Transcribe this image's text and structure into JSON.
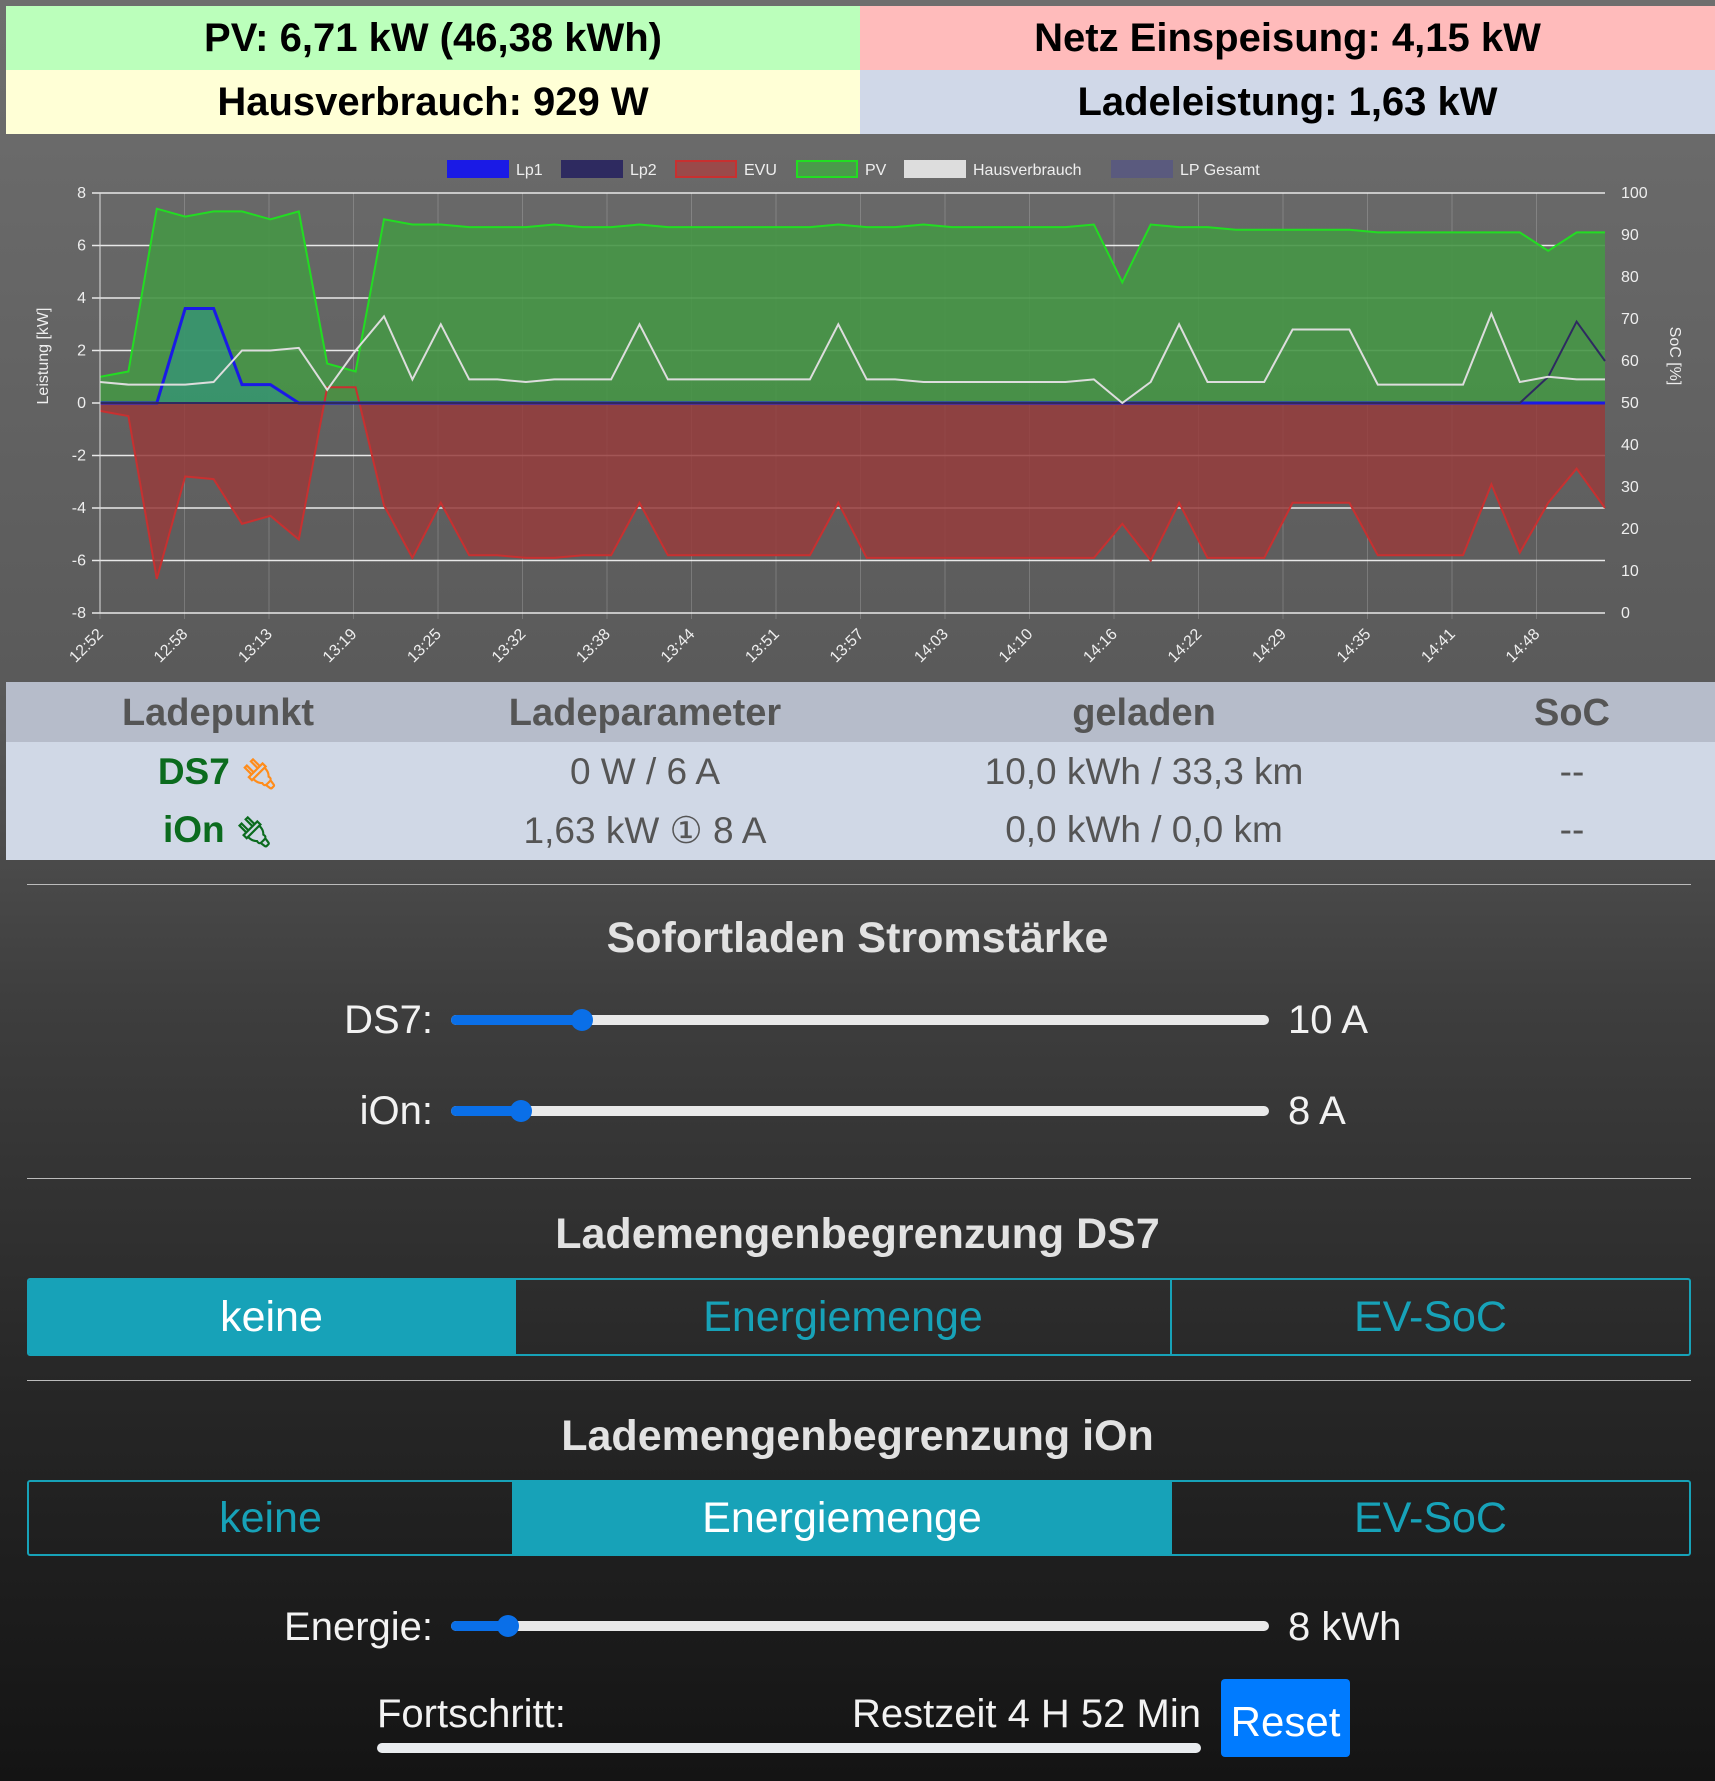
{
  "summary": {
    "pv": "PV: 6,71 kW (46,38 kWh)",
    "grid": "Netz Einspeisung: 4,15 kW",
    "house": "Hausverbrauch: 929 W",
    "charging": "Ladeleistung: 1,63 kW",
    "colors": {
      "pv": "#bbffbb",
      "grid": "#ffbbbb",
      "house": "#ffffd6",
      "charging": "#d0d8e8"
    }
  },
  "chart_data": {
    "type": "line",
    "ylabel": "Leistung [kW]",
    "y2label": "SoC [%]",
    "ylim": [
      -8,
      8
    ],
    "y2lim": [
      0,
      100
    ],
    "yticks": [
      "8",
      "6",
      "4",
      "2",
      "0",
      "-2",
      "-4",
      "-6",
      "-8"
    ],
    "y2ticks": [
      "100",
      "90",
      "80",
      "70",
      "60",
      "50",
      "40",
      "30",
      "20",
      "10",
      "0"
    ],
    "x_labels": [
      "12:52",
      "12:58",
      "13:13",
      "13:19",
      "13:25",
      "13:32",
      "13:38",
      "13:44",
      "13:51",
      "13:57",
      "14:03",
      "14:10",
      "14:16",
      "14:22",
      "14:29",
      "14:35",
      "14:41",
      "14:48"
    ],
    "grid": true,
    "legend": "top",
    "series": [
      {
        "name": "Lp1",
        "color": "#1a1ae6",
        "fill": "rgba(40,150,150,0.45)",
        "values": [
          0,
          0,
          0,
          3.6,
          3.6,
          0.7,
          0.7,
          0,
          0,
          0,
          0,
          0,
          0,
          0,
          0,
          0,
          0,
          0,
          0,
          0,
          0,
          0,
          0,
          0,
          0,
          0,
          0,
          0,
          0,
          0,
          0,
          0,
          0,
          0,
          0,
          0,
          0,
          0,
          0,
          0,
          0,
          0,
          0,
          0,
          0,
          0,
          0,
          0,
          0,
          0,
          0,
          0,
          0,
          0
        ]
      },
      {
        "name": "Lp2",
        "color": "#2e2a60",
        "fill": "none",
        "values": [
          0,
          0,
          0,
          0,
          0,
          0,
          0,
          0,
          0,
          0,
          0,
          0,
          0,
          0,
          0,
          0,
          0,
          0,
          0,
          0,
          0,
          0,
          0,
          0,
          0,
          0,
          0,
          0,
          0,
          0,
          0,
          0,
          0,
          0,
          0,
          0,
          0,
          0,
          0,
          0,
          0,
          0,
          0,
          0,
          0,
          0,
          0,
          0,
          0,
          0,
          0,
          1.0,
          3.1,
          1.6
        ]
      },
      {
        "name": "EVU",
        "color": "#c83030",
        "fill": "rgba(150,60,60,0.85)",
        "values": [
          -0.3,
          -0.5,
          -6.7,
          -2.8,
          -2.9,
          -4.6,
          -4.3,
          -5.2,
          0.6,
          0.6,
          -3.9,
          -5.9,
          -3.8,
          -5.8,
          -5.8,
          -5.9,
          -5.9,
          -5.8,
          -5.8,
          -3.8,
          -5.8,
          -5.8,
          -5.8,
          -5.8,
          -5.8,
          -5.8,
          -3.8,
          -5.9,
          -5.9,
          -5.9,
          -5.9,
          -5.9,
          -5.9,
          -5.9,
          -5.9,
          -5.9,
          -4.6,
          -6.0,
          -3.8,
          -5.9,
          -5.9,
          -5.9,
          -3.8,
          -3.8,
          -3.8,
          -5.8,
          -5.8,
          -5.8,
          -5.8,
          -3.1,
          -5.7,
          -3.8,
          -2.5,
          -4.0
        ]
      },
      {
        "name": "PV",
        "color": "#22dd22",
        "fill": "rgba(70,150,70,0.9)",
        "values": [
          1.0,
          1.2,
          7.4,
          7.1,
          7.3,
          7.3,
          7.0,
          7.3,
          1.5,
          1.2,
          7.0,
          6.8,
          6.8,
          6.7,
          6.7,
          6.7,
          6.8,
          6.7,
          6.7,
          6.8,
          6.7,
          6.7,
          6.7,
          6.7,
          6.7,
          6.7,
          6.8,
          6.7,
          6.7,
          6.8,
          6.7,
          6.7,
          6.7,
          6.7,
          6.7,
          6.8,
          4.6,
          6.8,
          6.7,
          6.7,
          6.6,
          6.6,
          6.6,
          6.6,
          6.6,
          6.5,
          6.5,
          6.5,
          6.5,
          6.5,
          6.5,
          5.8,
          6.5,
          6.5
        ]
      },
      {
        "name": "Hausverbrauch",
        "color": "#dddddd",
        "fill": "none",
        "values": [
          0.8,
          0.7,
          0.7,
          0.7,
          0.8,
          2.0,
          2.0,
          2.1,
          0.5,
          2.0,
          3.3,
          0.9,
          3.0,
          0.9,
          0.9,
          0.8,
          0.9,
          0.9,
          0.9,
          3.0,
          0.9,
          0.9,
          0.9,
          0.9,
          0.9,
          0.9,
          3.0,
          0.9,
          0.9,
          0.8,
          0.8,
          0.8,
          0.8,
          0.8,
          0.8,
          0.9,
          0.0,
          0.8,
          3.0,
          0.8,
          0.8,
          0.8,
          2.8,
          2.8,
          2.8,
          0.7,
          0.7,
          0.7,
          0.7,
          3.4,
          0.8,
          1.0,
          0.9,
          0.9
        ]
      },
      {
        "name": "LP Gesamt",
        "color": "#5a5a7e",
        "fill": "none",
        "values": []
      }
    ]
  },
  "table": {
    "headers": [
      "Ladepunkt",
      "Ladeparameter",
      "geladen",
      "SoC"
    ],
    "rows": [
      {
        "name": "DS7",
        "plug_icon": "plug-icon",
        "plug_color": "#ff8c1a",
        "params": "0 W / 6 A",
        "charged": "10,0 kWh / 33,3 km",
        "soc": "--"
      },
      {
        "name": "iOn",
        "plug_icon": "plug-icon",
        "plug_color": "#0b6b1e",
        "params": "1,63 kW ① 8 A",
        "charged": "0,0 kWh / 0,0 km",
        "soc": "--"
      }
    ]
  },
  "instant": {
    "title": "Sofortladen Stromstärke",
    "sliders": [
      {
        "label": "DS7:",
        "value": "10 A",
        "level": 0.16
      },
      {
        "label": "iOn:",
        "value": "8 A",
        "level": 0.085
      }
    ]
  },
  "limit_ds7": {
    "title": "Lademengenbegrenzung DS7",
    "options": [
      "keine",
      "Energiemenge",
      "EV-SoC"
    ],
    "selected": "keine"
  },
  "limit_ion": {
    "title": "Lademengenbegrenzung iOn",
    "options": [
      "keine",
      "Energiemenge",
      "EV-SoC"
    ],
    "selected": "Energiemenge",
    "energy_label": "Energie:",
    "energy_value": "8 kWh",
    "energy_level": 0.07,
    "progress_label": "Fortschritt:",
    "remaining": "Restzeit 4 H 52 Min",
    "progress": 0,
    "reset_label": "Reset"
  },
  "accent": "#17a2b8",
  "slider_color": "#0a6fe8",
  "button_color": "#007bff"
}
